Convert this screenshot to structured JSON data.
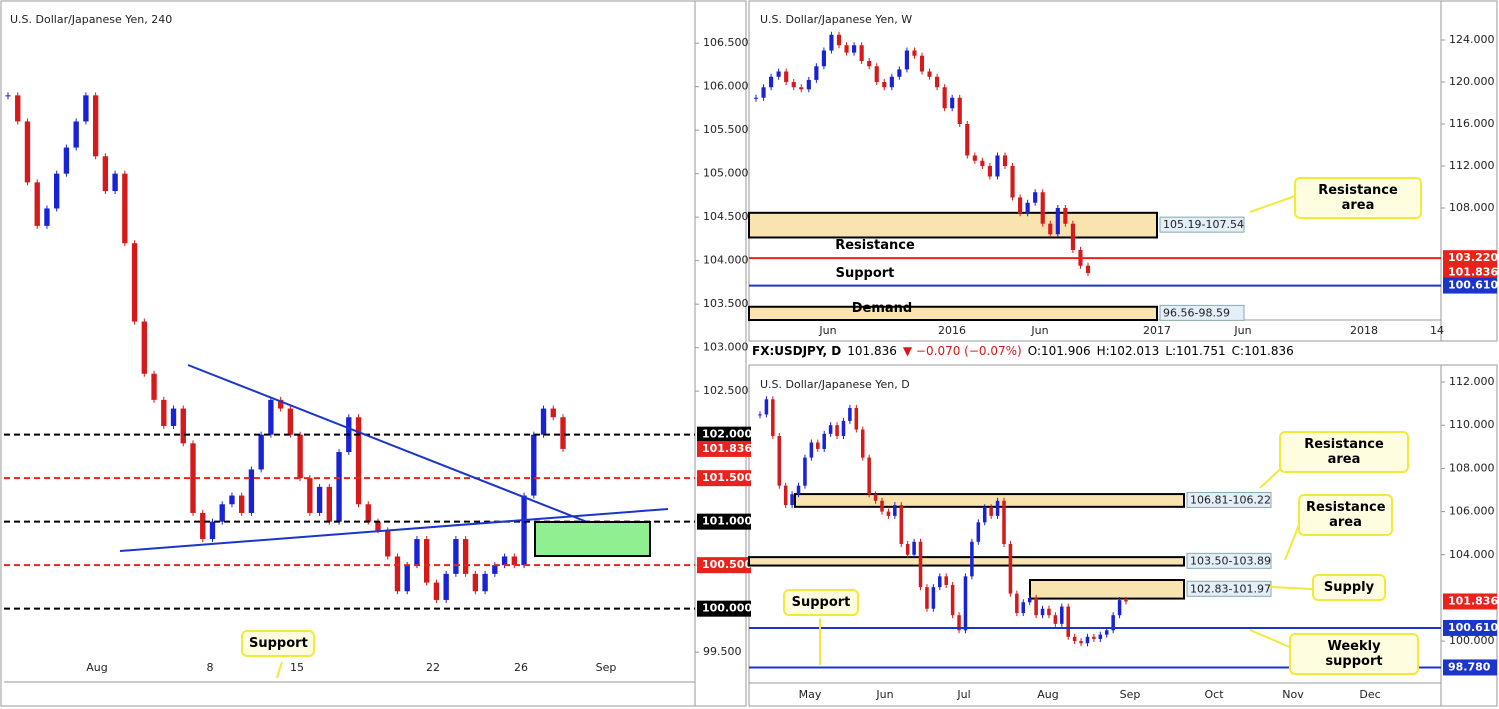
{
  "header": {
    "symbol": "FX:USDJPY, D",
    "price": "101.836",
    "change": "▼ −0.070 (−0.07%)",
    "open": "O:101.906",
    "high": "H:102.013",
    "low": "L:101.751",
    "close": "C:101.836"
  },
  "colors": {
    "up": "#1a23d4",
    "down": "#d41a1a"
  },
  "panels": [
    {
      "title": "U.S. Dollar/Japanese Yen, 240",
      "ylim": [
        99.18,
        106.95
      ],
      "yticks": [
        {
          "value": 106.5,
          "label": "106.500"
        },
        {
          "value": 106,
          "label": "106.000"
        },
        {
          "value": 105.5,
          "label": "105.500"
        },
        {
          "value": 105,
          "label": "105.000"
        },
        {
          "value": 104.5,
          "label": "104.500"
        },
        {
          "value": 104,
          "label": "104.000"
        },
        {
          "value": 103.5,
          "label": "103.500"
        },
        {
          "value": 103,
          "label": "103.000"
        },
        {
          "value": 102.5,
          "label": "102.500"
        },
        {
          "value": 99.5,
          "label": "99.500"
        }
      ],
      "xticks": [
        "Aug",
        "8",
        "15",
        "22",
        "26",
        "Sep"
      ],
      "closes": [
        105.9,
        105.6,
        104.9,
        104.4,
        104.6,
        105.0,
        105.3,
        105.6,
        105.9,
        105.2,
        104.8,
        105.0,
        104.2,
        103.3,
        102.7,
        102.4,
        102.1,
        102.3,
        101.9,
        101.1,
        100.8,
        101.0,
        101.2,
        101.3,
        101.1,
        101.6,
        102.0,
        102.4,
        102.3,
        102.0,
        101.5,
        101.1,
        101.4,
        101.0,
        101.8,
        102.2,
        101.2,
        101.0,
        100.9,
        100.6,
        100.2,
        100.5,
        100.8,
        100.3,
        100.1,
        100.4,
        100.8,
        100.4,
        100.2,
        100.4,
        100.5,
        100.6,
        100.5,
        101.3,
        102.0,
        102.3,
        102.2,
        101.836
      ],
      "levels": [
        {
          "value": 102,
          "label": "102.000",
          "color": "#000000",
          "kind": "dashed"
        },
        {
          "value": 101.836,
          "label": "101.836",
          "color": "#e8231c",
          "kind": "label"
        },
        {
          "value": 101.5,
          "label": "101.500",
          "color": "#e8231c",
          "kind": "dashed"
        },
        {
          "value": 101,
          "label": "101.000",
          "color": "#000000",
          "kind": "dashed"
        },
        {
          "value": 100.5,
          "label": "100.500",
          "color": "#e8231c",
          "kind": "dashed"
        },
        {
          "value": 100,
          "label": "100.000",
          "color": "#000000",
          "kind": "dashed"
        }
      ],
      "zones": [],
      "notes": [
        "Support"
      ]
    },
    {
      "title": "U.S. Dollar/Japanese Yen, W",
      "ylim": [
        97.33,
        127.43
      ],
      "yticks": [
        {
          "value": 124,
          "label": "124.000"
        },
        {
          "value": 120,
          "label": "120.000"
        },
        {
          "value": 116,
          "label": "116.000"
        },
        {
          "value": 112,
          "label": "112.000"
        },
        {
          "value": 108,
          "label": "108.000"
        }
      ],
      "xticks": [
        "Jun",
        "2016",
        "Jun",
        "2017",
        "Jun",
        "2018",
        "14"
      ],
      "closes": [
        118.5,
        119.5,
        120.5,
        121,
        120,
        119.5,
        119.3,
        120.2,
        121.5,
        123,
        124.5,
        123.5,
        122.8,
        123.5,
        122,
        121.5,
        120,
        119.5,
        120.5,
        121.2,
        123,
        122.5,
        121,
        120.5,
        119.5,
        117.5,
        118.5,
        116,
        113,
        112.5,
        112,
        111,
        113,
        112,
        109,
        107.5,
        108.5,
        109.5,
        106.5,
        105.5,
        108,
        106.5,
        104,
        102.5,
        101.8
      ],
      "levels": [
        {
          "value": 103.22,
          "label": "103.220",
          "color": "#e8231c",
          "kind": "solid"
        },
        {
          "value": 101.836,
          "label": "101.836",
          "color": "#e8231c",
          "kind": "label"
        },
        {
          "value": 100.61,
          "label": "100.610",
          "color": "#1c35c9",
          "kind": "solid"
        }
      ],
      "zones": [
        {
          "label": "105.19-107.54",
          "low": 105.19,
          "high": 107.54
        },
        {
          "label": "96.56-98.59",
          "low": 96.56,
          "high": 98.59
        }
      ],
      "notes": [
        "Resistance area",
        "Resistance",
        "Support",
        "Demand"
      ]
    },
    {
      "title": "U.S. Dollar/Japanese Yen, D",
      "ylim": [
        98.06,
        112.65
      ],
      "yticks": [
        {
          "value": 112,
          "label": "112.000"
        },
        {
          "value": 110,
          "label": "110.000"
        },
        {
          "value": 108,
          "label": "108.000"
        },
        {
          "value": 106,
          "label": "106.000"
        },
        {
          "value": 104,
          "label": "104.000"
        },
        {
          "value": 100,
          "label": "100.000"
        }
      ],
      "xticks": [
        "May",
        "Jun",
        "Jul",
        "Aug",
        "Sep",
        "Oct",
        "Nov",
        "Dec"
      ],
      "closes": [
        110.5,
        111.2,
        109.5,
        107.2,
        106.3,
        106.8,
        107.2,
        108.5,
        109.2,
        108.9,
        109.6,
        110.0,
        109.5,
        110.2,
        110.8,
        109.8,
        108.5,
        106.8,
        106.5,
        106.0,
        105.8,
        106.3,
        104.5,
        104.0,
        104.6,
        102.5,
        101.5,
        102.5,
        103,
        102.6,
        101.2,
        100.5,
        103.0,
        104.6,
        105.5,
        106.2,
        105.8,
        106.5,
        104.5,
        102.2,
        101.3,
        101.8,
        102.0,
        101.2,
        101.5,
        101.2,
        100.8,
        101.6,
        100.2,
        100.0,
        99.9,
        100.2,
        100.1,
        100.3,
        100.5,
        101.2,
        101.9,
        101.836
      ],
      "levels": [
        {
          "value": 101.836,
          "label": "101.836",
          "color": "#e8231c",
          "kind": "label"
        },
        {
          "value": 100.61,
          "label": "100.610",
          "color": "#1c35c9",
          "kind": "solid"
        },
        {
          "value": 98.78,
          "label": "98.780",
          "color": "#1c35c9",
          "kind": "solid"
        }
      ],
      "zones": [
        {
          "label": "106.81-106.22",
          "low": 106.22,
          "high": 106.81
        },
        {
          "label": "103.50-103.89",
          "low": 103.5,
          "high": 103.89
        },
        {
          "label": "102.83-101.97",
          "low": 101.97,
          "high": 102.83
        }
      ],
      "notes": [
        "Resistance area",
        "Resistance area",
        "Supply",
        "Weekly support",
        "Support"
      ]
    }
  ]
}
